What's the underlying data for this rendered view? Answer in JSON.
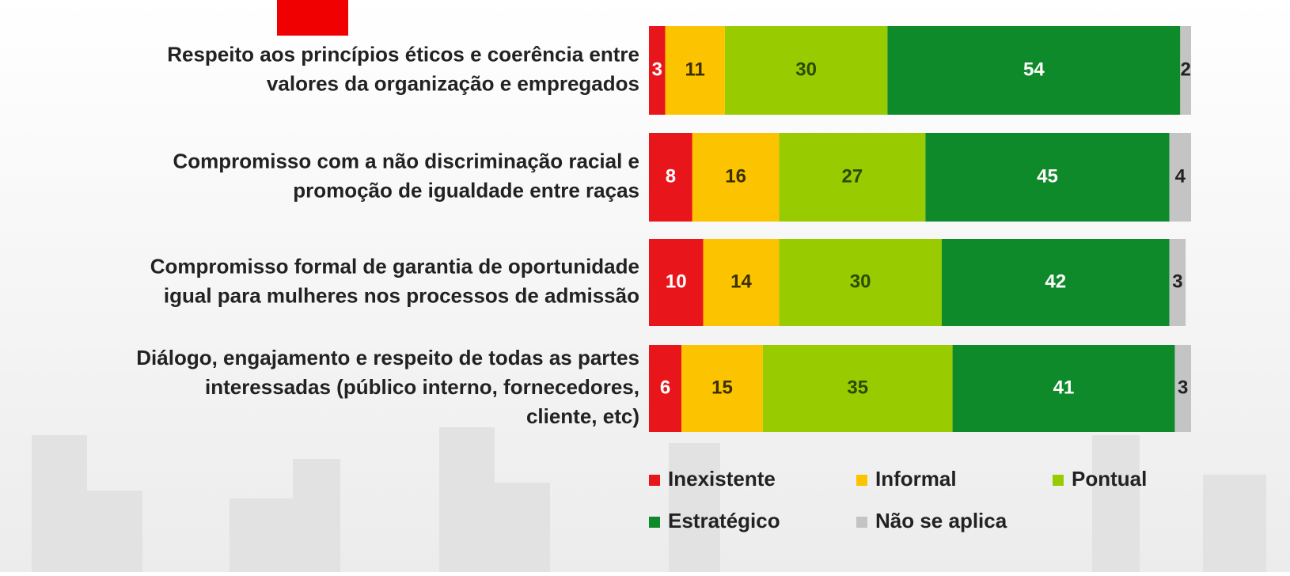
{
  "chart_data": {
    "type": "stacked-bar-horizontal",
    "categories": [
      [
        "Respeito aos princípios éticos e coerência entre",
        "valores da organização e empregados"
      ],
      [
        "Compromisso com a não discriminação racial e",
        "promoção de igualdade entre raças"
      ],
      [
        "Compromisso formal de garantia de oportunidade",
        "igual para mulheres nos processos de admissão"
      ],
      [
        "Diálogo, engajamento e respeito de todas as partes",
        "interessadas (público interno, fornecedores,",
        "cliente, etc)"
      ]
    ],
    "series": [
      {
        "name": "Inexistente",
        "color": "#e8161b",
        "label_color": "#ffffff",
        "values": [
          3,
          8,
          10,
          6
        ]
      },
      {
        "name": "Informal",
        "color": "#fcc400",
        "label_color": "#3a3000",
        "values": [
          11,
          16,
          14,
          15
        ]
      },
      {
        "name": "Pontual",
        "color": "#99cc00",
        "label_color": "#2c4a00",
        "values": [
          30,
          27,
          30,
          35
        ]
      },
      {
        "name": "Estratégico",
        "color": "#0f8a2a",
        "label_color": "#ffffff",
        "values": [
          54,
          45,
          42,
          41
        ]
      },
      {
        "name": "Não se aplica",
        "color": "#c4c4c4",
        "label_color": "#222222",
        "values": [
          2,
          4,
          3,
          3
        ]
      }
    ],
    "xlim": [
      0,
      100
    ],
    "legend": "bottom-right"
  }
}
